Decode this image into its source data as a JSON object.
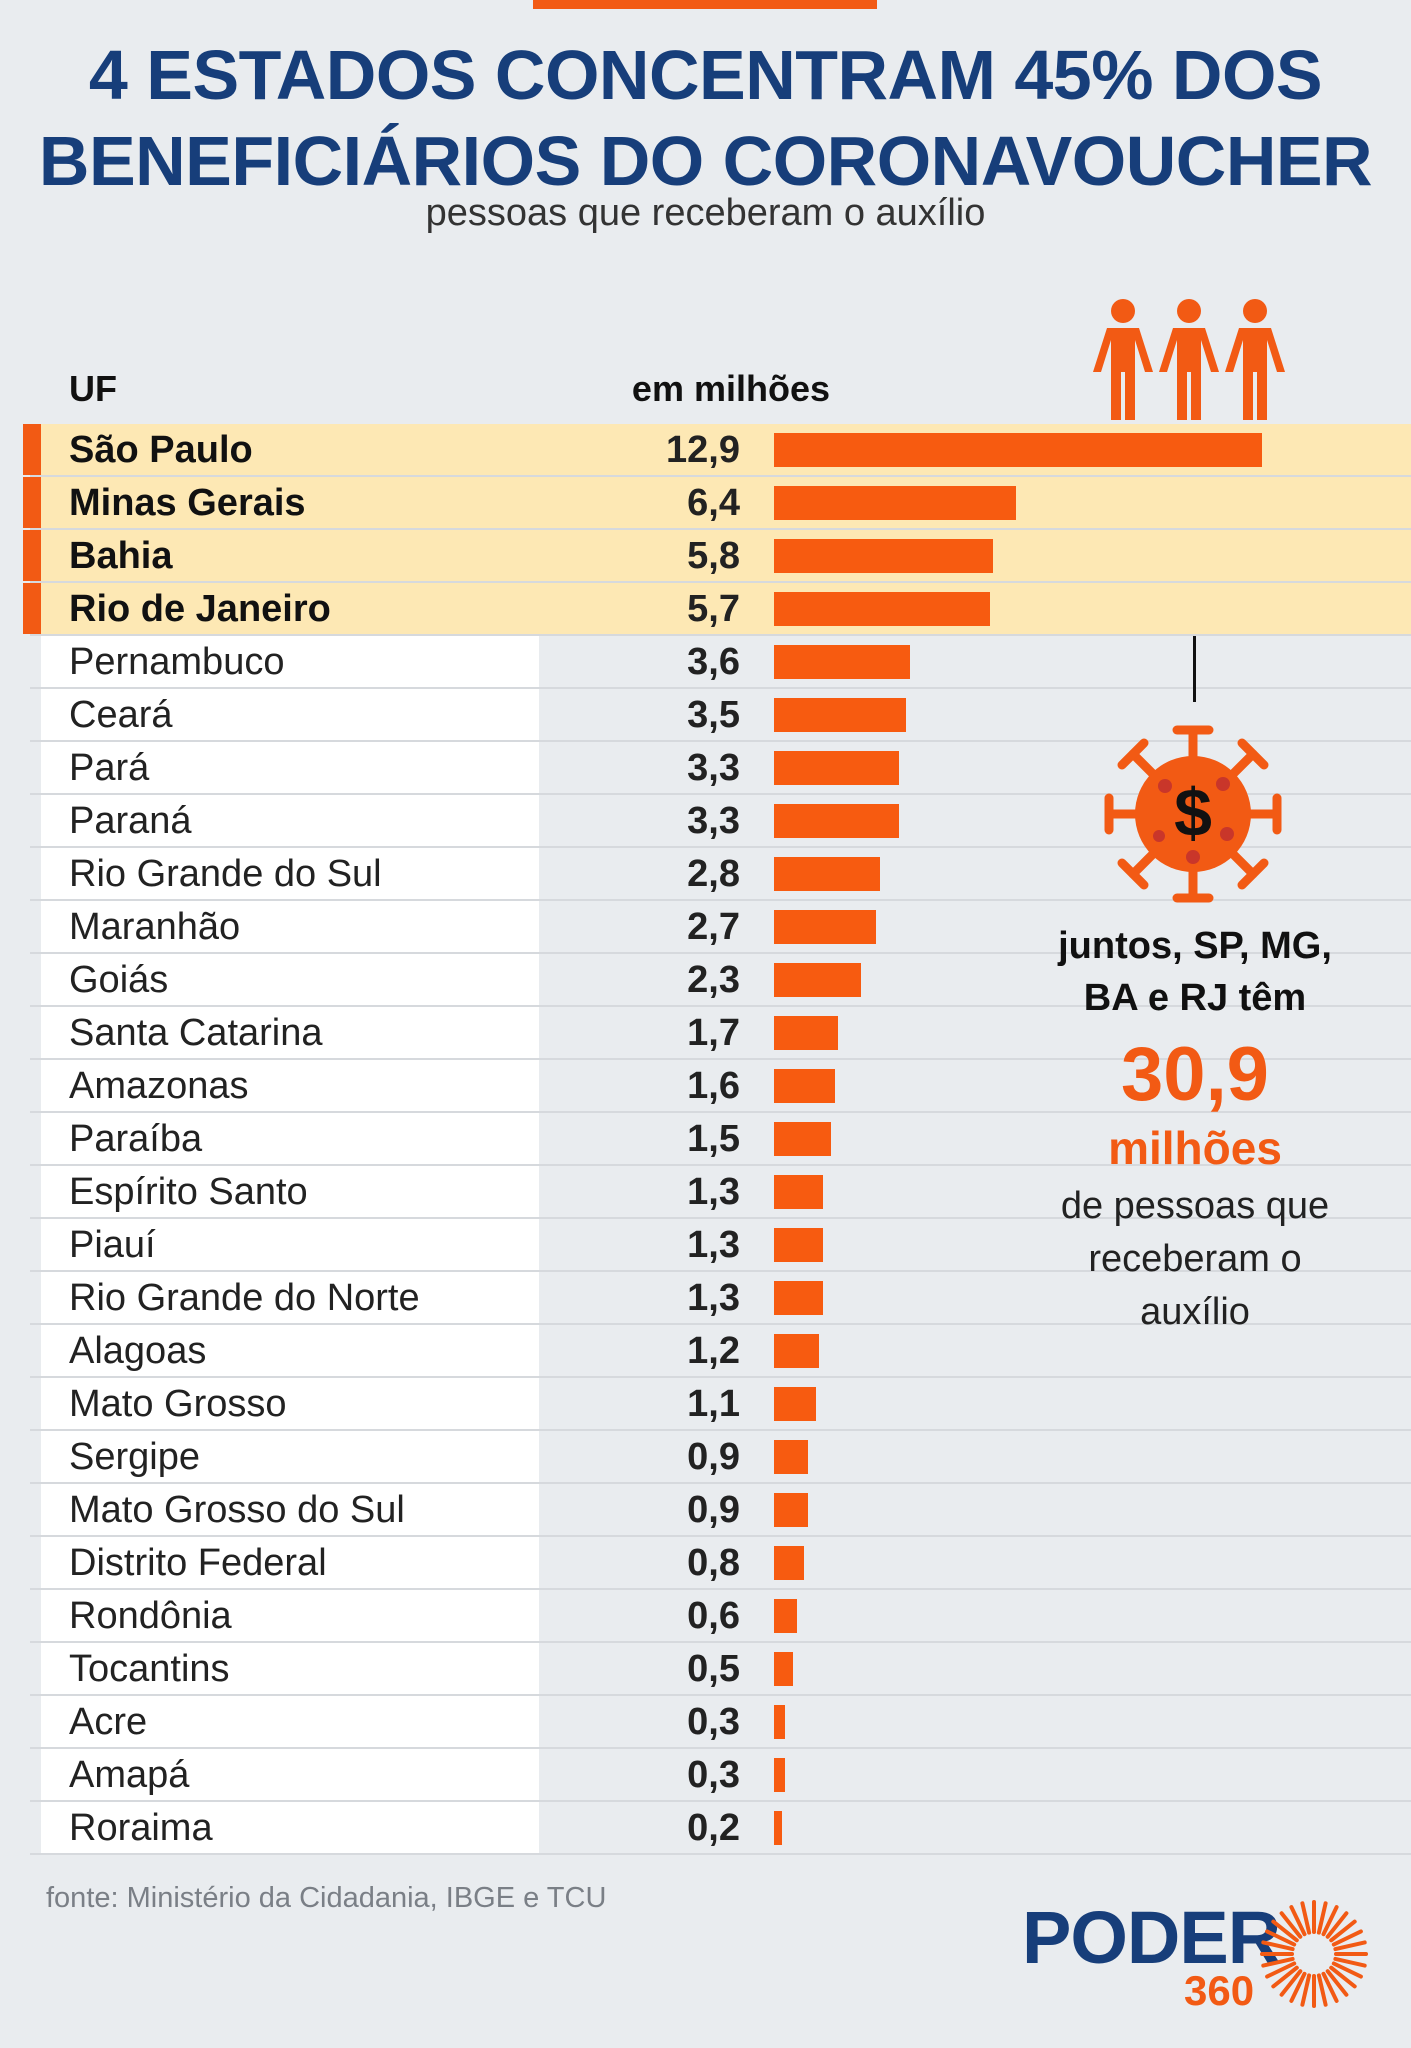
{
  "header": {
    "title_line1": "4 ESTADOS CONCENTRAM 45% DOS",
    "title_line2": "BENEFICIÁRIOS DO CORONAVOUCHER",
    "subtitle": "pessoas que receberam o auxílio"
  },
  "columns": {
    "uf": "UF",
    "value": "em milhões"
  },
  "chart_data": {
    "type": "bar",
    "orientation": "horizontal",
    "unit": "em milhões",
    "categories": [
      "São Paulo",
      "Minas Gerais",
      "Bahia",
      "Rio de Janeiro",
      "Pernambuco",
      "Ceará",
      "Pará",
      "Paraná",
      "Rio Grande do Sul",
      "Maranhão",
      "Goiás",
      "Santa Catarina",
      "Amazonas",
      "Paraíba",
      "Espírito Santo",
      "Piauí",
      "Rio Grande do Norte",
      "Alagoas",
      "Mato Grosso",
      "Sergipe",
      "Mato Grosso do Sul",
      "Distrito Federal",
      "Rondônia",
      "Tocantins",
      "Acre",
      "Amapá",
      "Roraima"
    ],
    "values": [
      12.9,
      6.4,
      5.8,
      5.7,
      3.6,
      3.5,
      3.3,
      3.3,
      2.8,
      2.7,
      2.3,
      1.7,
      1.6,
      1.5,
      1.3,
      1.3,
      1.3,
      1.2,
      1.1,
      0.9,
      0.9,
      0.8,
      0.6,
      0.5,
      0.3,
      0.3,
      0.2
    ],
    "value_labels": [
      "12,9",
      "6,4",
      "5,8",
      "5,7",
      "3,6",
      "3,5",
      "3,3",
      "3,3",
      "2,8",
      "2,7",
      "2,3",
      "1,7",
      "1,6",
      "1,5",
      "1,3",
      "1,3",
      "1,3",
      "1,2",
      "1,1",
      "0,9",
      "0,9",
      "0,8",
      "0,6",
      "0,5",
      "0,3",
      "0,3",
      "0,2"
    ],
    "highlighted_count": 4,
    "xlim": [
      0,
      12.9
    ],
    "colors": {
      "bar": "#f75b10",
      "highlight_row": "#fde8b4",
      "marker": "#f25a14"
    }
  },
  "callout": {
    "line1": "juntos, SP, MG,",
    "line2": "BA e RJ têm",
    "big_number": "30,9",
    "unit": "milhões",
    "desc1": "de pessoas que",
    "desc2": "receberam o",
    "desc3": "auxílio"
  },
  "icons": {
    "people": "people-icon",
    "virus": "virus-dollar-icon",
    "logo": "sun-logo-icon"
  },
  "footer": {
    "source": "fonte: Ministério da Cidadania, IBGE e TCU"
  },
  "logo": {
    "word": "PODER",
    "number": "360"
  },
  "colors": {
    "title": "#173e7a",
    "accent": "#f25a14"
  }
}
